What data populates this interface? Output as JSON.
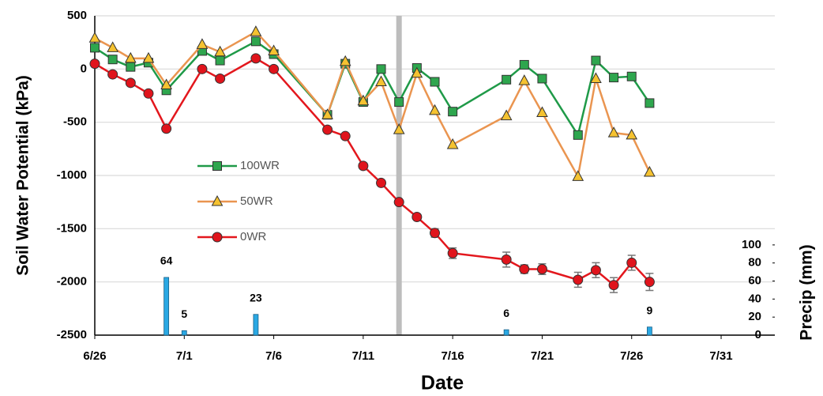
{
  "chart_data": {
    "type": "line",
    "x_label": "Date",
    "y_label": "Soil Water Potential (kPa)",
    "y2_label": "Precip (mm)",
    "x": [
      "6/26",
      "6/27",
      "6/28",
      "6/29",
      "6/30",
      "7/2",
      "7/3",
      "7/5",
      "7/6",
      "7/9",
      "7/10",
      "7/11",
      "7/12",
      "7/13",
      "7/14",
      "7/15",
      "7/16",
      "7/19",
      "7/20",
      "7/21",
      "7/23",
      "7/24",
      "7/25",
      "7/26",
      "7/27"
    ],
    "xlim": [
      "6/26",
      "8/3"
    ],
    "xticks": [
      "6/26",
      "7/1",
      "7/6",
      "7/11",
      "7/16",
      "7/21",
      "7/26",
      "7/31"
    ],
    "ylim": [
      -2500,
      500
    ],
    "yticks": [
      -2500,
      -2000,
      -1500,
      -1000,
      -500,
      0,
      500
    ],
    "y2lim": [
      0,
      354
    ],
    "y2ticks": [
      0,
      20,
      40,
      60,
      80,
      100
    ],
    "grid": true,
    "vline": "7/13",
    "series": [
      {
        "name": "100WR",
        "color": "#1f9a48",
        "marker": "square",
        "marker_color": "#2ea64e",
        "values": [
          200,
          90,
          20,
          60,
          -200,
          170,
          80,
          260,
          140,
          -430,
          50,
          -310,
          0,
          -310,
          10,
          -120,
          -400,
          -100,
          40,
          -90,
          -620,
          80,
          -80,
          -70,
          -320
        ]
      },
      {
        "name": "50WR",
        "color": "#ea9550",
        "marker": "triangle",
        "marker_color": "#f5c230",
        "values": [
          290,
          200,
          100,
          100,
          -150,
          230,
          160,
          350,
          170,
          -430,
          70,
          -300,
          -120,
          -570,
          -40,
          -390,
          -710,
          -440,
          -110,
          -410,
          -1010,
          -90,
          -600,
          -620,
          -970
        ]
      },
      {
        "name": "0WR",
        "color": "#e3171d",
        "marker": "circle",
        "marker_color": "#e0141c",
        "values": [
          50,
          -50,
          -130,
          -230,
          -560,
          0,
          -90,
          100,
          0,
          -570,
          -630,
          -910,
          -1070,
          -1250,
          -1390,
          -1540,
          -1730,
          -1790,
          -1880,
          -1880,
          -1980,
          -1890,
          -2030,
          -1820,
          -2000
        ],
        "errors": [
          null,
          null,
          null,
          null,
          null,
          null,
          null,
          null,
          null,
          null,
          null,
          null,
          null,
          null,
          null,
          40,
          50,
          70,
          40,
          50,
          70,
          70,
          70,
          70,
          80
        ]
      },
      {
        "type": "bar",
        "axis": "y2",
        "color": "#2aa8e3",
        "x": [
          "6/30",
          "7/1",
          "7/5",
          "7/19",
          "7/27"
        ],
        "values": [
          64,
          5,
          23,
          6,
          9
        ]
      }
    ]
  }
}
